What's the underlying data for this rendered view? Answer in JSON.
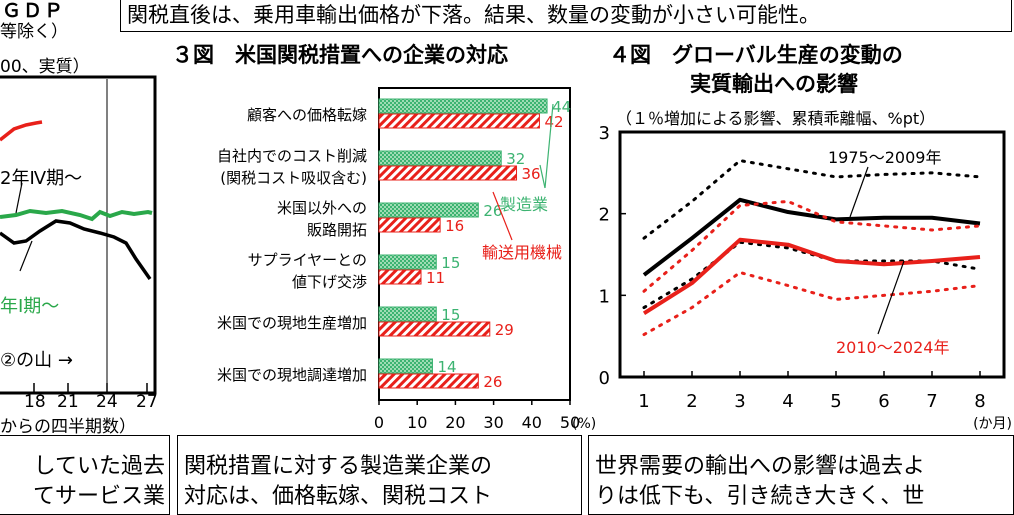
{
  "header": {
    "top_caption": "関税直後は、乗用車輸出価格が下落。結果、数量の変動が小さい可能性。",
    "fig3_title": "３図　米国関税措置への企業の対応",
    "fig4_title_1": "４図　グローバル生産の変動の",
    "fig4_title_2": "実質輸出への影響"
  },
  "left_panel": {
    "title_fragment": "ＧＤＰ",
    "line1": "等除く）",
    "line2": "00、実質）",
    "label_a": "2年Ⅳ期～",
    "label_b": "年Ⅰ期～",
    "label_c": "②の山 →",
    "ticks": [
      "18",
      "21",
      "24",
      "27"
    ],
    "xlabel": "からの四半期数）"
  },
  "fig3": {
    "unit": "(%)",
    "chart_data": {
      "type": "bar",
      "orientation": "horizontal",
      "categories": [
        "顧客への価格転嫁",
        "自社内でのコスト削減\n(関税コスト吸収含む)",
        "米国以外への\n販路開拓",
        "サプライヤーとの\n値下げ交渉",
        "米国での現地生産増加",
        "米国での現地調達増加"
      ],
      "series": [
        {
          "name": "製造業",
          "color": "#3cb371",
          "values": [
            44,
            32,
            26,
            15,
            15,
            14
          ]
        },
        {
          "name": "輸送用機械",
          "color": "#e8201a",
          "values": [
            42,
            36,
            16,
            11,
            29,
            26
          ]
        }
      ],
      "xlim": [
        0,
        50
      ],
      "xticks": [
        "0",
        "10",
        "20",
        "30",
        "40",
        "50"
      ]
    }
  },
  "fig4": {
    "subtitle": "（１％増加による影響、累積乖離幅、%pt）",
    "xunit": "(か月)",
    "chart_data": {
      "type": "line",
      "x": [
        1,
        2,
        3,
        4,
        5,
        6,
        7,
        8
      ],
      "ylim": [
        0,
        3
      ],
      "yticks": [
        "0",
        "1",
        "2",
        "3"
      ],
      "series": [
        {
          "name": "1975～2009年",
          "color": "#000000",
          "style": "solid",
          "values": [
            1.25,
            1.7,
            2.17,
            2.02,
            1.93,
            1.95,
            1.95,
            1.88
          ]
        },
        {
          "name": "",
          "color": "#000000",
          "style": "dotted",
          "values": [
            1.7,
            2.15,
            2.65,
            2.55,
            2.45,
            2.48,
            2.5,
            2.45
          ]
        },
        {
          "name": "",
          "color": "#000000",
          "style": "dotted",
          "values": [
            0.85,
            1.2,
            1.65,
            1.58,
            1.42,
            1.42,
            1.42,
            1.32
          ]
        },
        {
          "name": "2010～2024年",
          "color": "#e8201a",
          "style": "solid",
          "values": [
            0.78,
            1.15,
            1.68,
            1.62,
            1.42,
            1.38,
            1.42,
            1.47
          ]
        },
        {
          "name": "",
          "color": "#e8201a",
          "style": "dotted",
          "values": [
            1.05,
            1.55,
            2.1,
            2.15,
            1.9,
            1.85,
            1.8,
            1.85
          ]
        },
        {
          "name": "",
          "color": "#e8201a",
          "style": "dotted",
          "values": [
            0.52,
            0.85,
            1.28,
            1.12,
            0.95,
            1.0,
            1.05,
            1.12
          ]
        }
      ]
    }
  },
  "bottom": {
    "col1_line1": "していた過去",
    "col1_line2": "てサービス業",
    "col2_line1": "関税措置に対する製造業企業の",
    "col2_line2": "対応は、価格転嫁、関税コスト",
    "col3_line1": "世界需要の輸出への影響は過去よ",
    "col3_line2": "りは低下も、引き続き大きく、世"
  }
}
